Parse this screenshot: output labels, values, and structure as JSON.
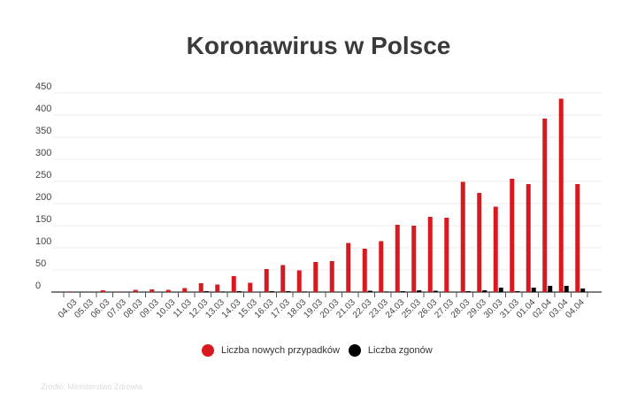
{
  "chart_data": {
    "type": "bar",
    "title": "Koronawirus w Polsce",
    "categories": [
      "04.03",
      "05.03",
      "06.03",
      "07.03",
      "08.03",
      "09.03",
      "10.03",
      "11.03",
      "12.03",
      "13.03",
      "14.03",
      "15.03",
      "16.03",
      "17.03",
      "18.03",
      "19.03",
      "20.03",
      "21.03",
      "22.03",
      "23.03",
      "24.03",
      "25.03",
      "26.03",
      "27.03",
      "28.03",
      "29.03",
      "30.03",
      "31.03",
      "01.04",
      "02.04",
      "03.04",
      "04.04"
    ],
    "series": [
      {
        "name": "Liczba nowych przypadków",
        "color": "#d71920",
        "values": [
          1,
          0,
          4,
          1,
          5,
          6,
          5,
          9,
          20,
          17,
          36,
          21,
          52,
          61,
          49,
          68,
          70,
          111,
          98,
          115,
          152,
          150,
          170,
          168,
          249,
          224,
          193,
          256,
          244,
          392,
          437,
          244
        ]
      },
      {
        "name": "Liczba zgonów",
        "color": "#000000",
        "values": [
          0,
          0,
          0,
          0,
          0,
          0,
          0,
          0,
          2,
          1,
          2,
          0,
          2,
          2,
          1,
          0,
          0,
          0,
          3,
          1,
          2,
          4,
          3,
          0,
          2,
          4,
          10,
          2,
          10,
          14,
          14,
          8
        ]
      }
    ],
    "yticks": [
      0,
      50,
      100,
      150,
      200,
      250,
      300,
      350,
      400,
      450
    ],
    "ylim": [
      0,
      450
    ],
    "grid": true,
    "legend": "bottom",
    "source": "Źródło: Ministerstwo Zdrowia"
  }
}
